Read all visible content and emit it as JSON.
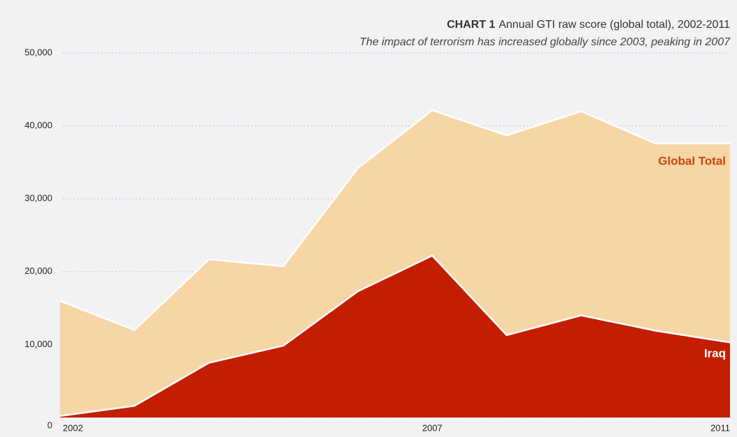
{
  "chart_data": {
    "type": "area",
    "title_label": "CHART 1",
    "title": "Annual GTI raw score (global total), 2002-2011",
    "subtitle": "The impact of terrorism has increased globally since 2003, peaking in 2007",
    "x": [
      2002,
      2003,
      2004,
      2005,
      2006,
      2007,
      2008,
      2009,
      2010,
      2011
    ],
    "xlim": [
      2002,
      2011
    ],
    "xticks": [
      2002,
      2007,
      2011
    ],
    "series": [
      {
        "name": "Global Total",
        "color": "#f7d6a6",
        "values": [
          16000,
          12000,
          21700,
          20750,
          34200,
          42150,
          38700,
          42000,
          37600,
          37600
        ]
      },
      {
        "name": "Iraq",
        "color": "#c41e00",
        "values": [
          200,
          1600,
          7500,
          9850,
          17300,
          22200,
          11300,
          14000,
          11900,
          10300
        ]
      }
    ],
    "ylim": [
      0,
      50000
    ],
    "yticks": [
      0,
      {
        "value": 10000,
        "label": "10,000"
      },
      {
        "value": 20000,
        "label": "20,000"
      },
      {
        "value": 30000,
        "label": "30,000"
      },
      {
        "value": 40000,
        "label": "40,000"
      },
      {
        "value": 50000,
        "label": "50,000"
      }
    ],
    "grid": true
  }
}
